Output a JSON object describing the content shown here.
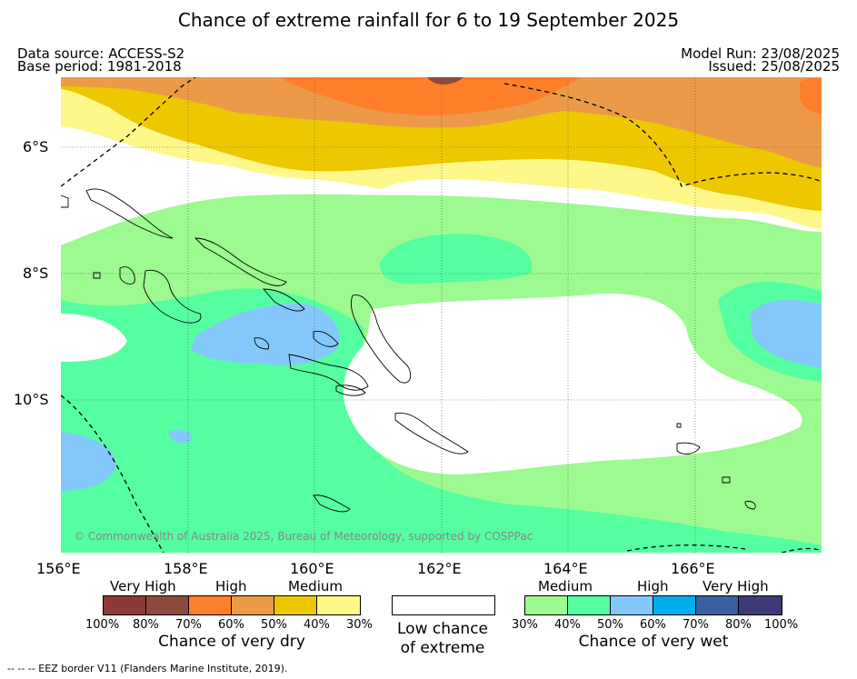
{
  "title": "Chance of extreme rainfall for 6 to 19 September 2025",
  "meta": {
    "data_source": "Data source: ACCESS-S2",
    "base_period": "Base period: 1981-2018",
    "model_run": "Model Run: 23/08/2025",
    "issued": "Issued: 25/08/2025"
  },
  "map": {
    "lon_labels": [
      "156°E",
      "158°E",
      "160°E",
      "162°E",
      "164°E",
      "166°E"
    ],
    "lat_labels": [
      "6°S",
      "8°S",
      "10°S"
    ],
    "copyright": "© Commonwealth of Australia 2025, Bureau of Meteorology, supported by COSPPac"
  },
  "legend": {
    "dry": {
      "headers": [
        "Very High",
        "High",
        "Medium"
      ],
      "colors": [
        "#8b3a35",
        "#8b4a3c",
        "#fe7f2a",
        "#ec9a47",
        "#edc700",
        "#fef78a"
      ],
      "ticks": [
        "100%",
        "80%",
        "70%",
        "60%",
        "50%",
        "40%",
        "30%"
      ],
      "caption": "Chance of very dry"
    },
    "low": {
      "caption_line1": "Low chance",
      "caption_line2": "of extreme"
    },
    "wet": {
      "headers": [
        "Medium",
        "High",
        "Very High"
      ],
      "colors": [
        "#9cfa90",
        "#55fea0",
        "#84c8fb",
        "#00aeed",
        "#3b60a0",
        "#3e3a75"
      ],
      "ticks": [
        "30%",
        "40%",
        "50%",
        "60%",
        "70%",
        "80%",
        "100%"
      ],
      "caption": "Chance of very wet"
    }
  },
  "footnote": "--  --  -- EEZ border V11 (Flanders Marine Institute, 2019)."
}
